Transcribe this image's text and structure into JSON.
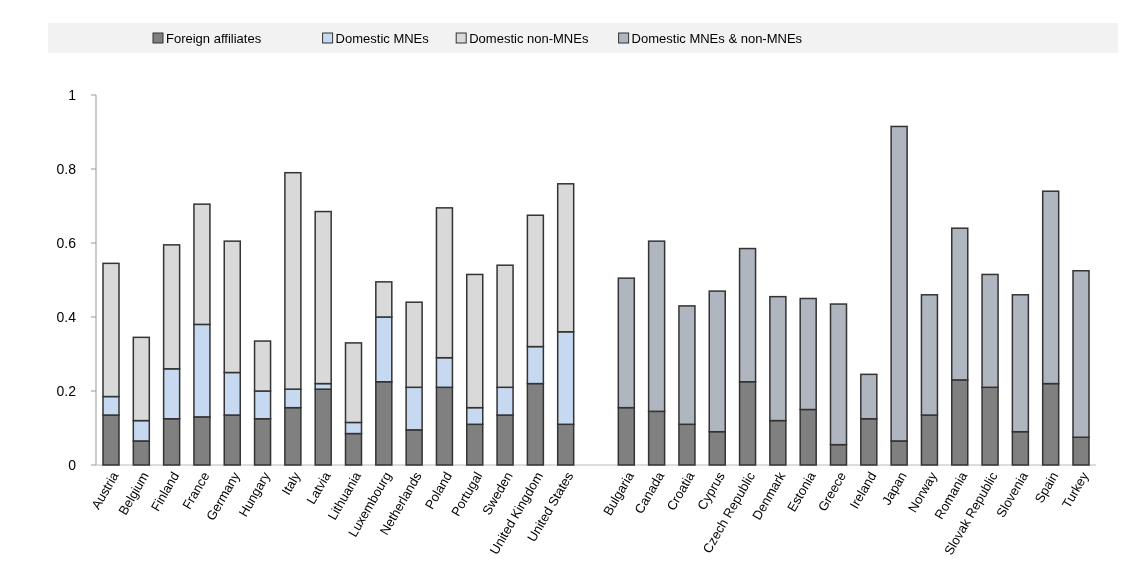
{
  "chart_data": {
    "type": "bar",
    "stacked": true,
    "legend": "top",
    "ylim": [
      0,
      1
    ],
    "yticks": [
      0,
      0.2,
      0.4,
      0.6,
      0.8,
      1
    ],
    "categories": [
      "Austria",
      "Belgium",
      "Finland",
      "France",
      "Germany",
      "Hungary",
      "Italy",
      "Latvia",
      "Lithuania",
      "Luxembourg",
      "Netherlands",
      "Poland",
      "Portugal",
      "Sweden",
      "United Kingdom",
      "United States",
      null,
      "Bulgaria",
      "Canada",
      "Croatia",
      "Cyprus",
      "Czech Republic",
      "Denmark",
      "Estonia",
      "Greece",
      "Ireland",
      "Japan",
      "Norway",
      "Romania",
      "Slovak Republic",
      "Slovenia",
      "Spain",
      "Turkey"
    ],
    "series": [
      {
        "name": "Foreign affiliates",
        "color": "#808080",
        "values": [
          0.135,
          0.065,
          0.125,
          0.13,
          0.135,
          0.125,
          0.155,
          0.205,
          0.085,
          0.225,
          0.095,
          0.21,
          0.11,
          0.135,
          0.22,
          0.11,
          null,
          0.155,
          0.145,
          0.11,
          0.09,
          0.225,
          0.12,
          0.15,
          0.055,
          0.125,
          0.065,
          0.135,
          0.23,
          0.21,
          0.09,
          0.22,
          0.075
        ]
      },
      {
        "name": "Domestic MNEs",
        "color": "#c6d9f0",
        "values": [
          0.05,
          0.055,
          0.135,
          0.25,
          0.115,
          0.075,
          0.05,
          0.015,
          0.03,
          0.175,
          0.115,
          0.08,
          0.045,
          0.075,
          0.1,
          0.25,
          null,
          null,
          null,
          null,
          null,
          null,
          null,
          null,
          null,
          null,
          null,
          null,
          null,
          null,
          null,
          null,
          null
        ]
      },
      {
        "name": "Domestic non-MNEs",
        "color": "#d9d9d9",
        "values": [
          0.36,
          0.225,
          0.335,
          0.325,
          0.355,
          0.135,
          0.585,
          0.465,
          0.215,
          0.095,
          0.23,
          0.405,
          0.36,
          0.33,
          0.355,
          0.4,
          null,
          null,
          null,
          null,
          null,
          null,
          null,
          null,
          null,
          null,
          null,
          null,
          null,
          null,
          null,
          null,
          null
        ]
      },
      {
        "name": "Domestic MNEs & non-MNEs",
        "color": "#afb6bf",
        "values": [
          null,
          null,
          null,
          null,
          null,
          null,
          null,
          null,
          null,
          null,
          null,
          null,
          null,
          null,
          null,
          null,
          null,
          0.35,
          0.46,
          0.32,
          0.38,
          0.36,
          0.335,
          0.3,
          0.38,
          0.12,
          0.85,
          0.325,
          0.41,
          0.305,
          0.37,
          0.52,
          0.45
        ]
      }
    ]
  }
}
